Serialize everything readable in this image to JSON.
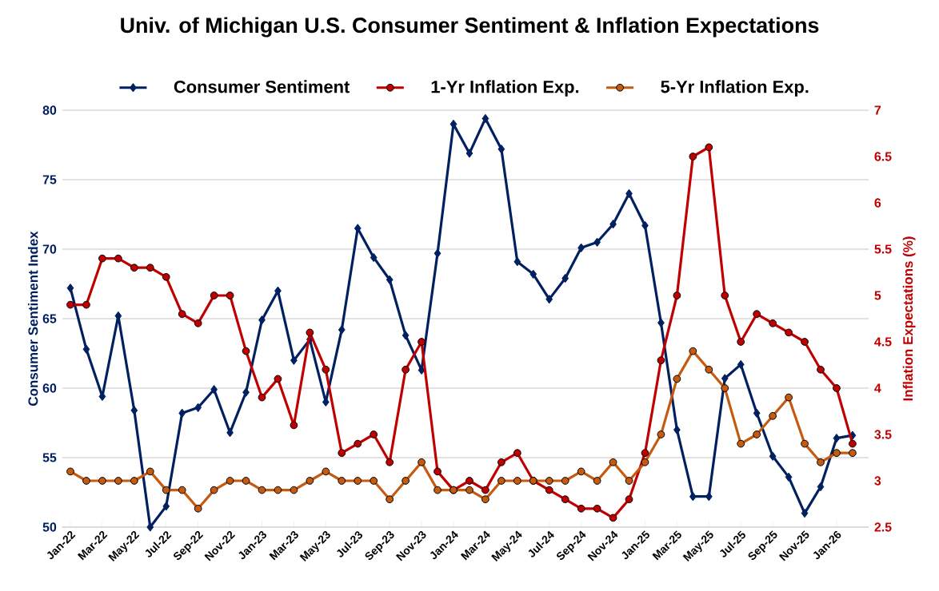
{
  "chart_data": {
    "type": "line",
    "title": "Univ. of Michigan U.S. Consumer Sentiment & Inflation Expectations",
    "ylabel": "Consumer Sentiment Index",
    "y2label": "Inflation Expectations (%)",
    "x": [
      "2022-01",
      "2022-02",
      "2022-03",
      "2022-04",
      "2022-05",
      "2022-06",
      "2022-07",
      "2022-08",
      "2022-09",
      "2022-10",
      "2022-11",
      "2022-12",
      "2023-01",
      "2023-02",
      "2023-03",
      "2023-04",
      "2023-05",
      "2023-06",
      "2023-07",
      "2023-08",
      "2023-09",
      "2023-10",
      "2023-11",
      "2023-12",
      "2024-01",
      "2024-02",
      "2024-03",
      "2024-04",
      "2024-05",
      "2024-06",
      "2024-07",
      "2024-08",
      "2024-09",
      "2024-10",
      "2024-11",
      "2024-12",
      "2025-01",
      "2025-02",
      "2025-03",
      "2025-04",
      "2025-05",
      "2025-06",
      "2025-07",
      "2025-08",
      "2025-09",
      "2025-10",
      "2025-11",
      "2025-12",
      "2026-01",
      "2026-02"
    ],
    "series": [
      {
        "name": "Consumer Sentiment",
        "color": "#002060",
        "marker": "diamond",
        "values": [
          67.2,
          62.8,
          59.4,
          65.2,
          58.4,
          50.0,
          51.5,
          58.2,
          58.6,
          59.9,
          56.8,
          59.7,
          64.9,
          67.0,
          62.0,
          63.5,
          59.0,
          64.2,
          71.5,
          69.4,
          67.8,
          63.8,
          61.3,
          69.7,
          79.0,
          76.9,
          79.4,
          77.2,
          69.1,
          68.2,
          66.4,
          67.9,
          70.1,
          70.5,
          71.8,
          74.0,
          71.7,
          64.7,
          57.0,
          52.2,
          52.2,
          60.7,
          61.7,
          58.2,
          55.1,
          53.6,
          51.0,
          52.9,
          56.4,
          56.6
        ]
      },
      {
        "name": "1-Yr Inflation Exp.",
        "color": "#c00000",
        "marker": "circle",
        "axis": "y2",
        "values": [
          4.9,
          4.9,
          5.4,
          5.4,
          5.3,
          5.3,
          5.2,
          4.8,
          4.7,
          5.0,
          5.0,
          4.4,
          3.9,
          4.1,
          3.6,
          4.6,
          4.2,
          3.3,
          3.4,
          3.5,
          3.2,
          4.2,
          4.5,
          3.1,
          2.9,
          3.0,
          2.9,
          3.2,
          3.3,
          3.0,
          2.9,
          2.8,
          2.7,
          2.7,
          2.6,
          2.8,
          3.3,
          4.3,
          5.0,
          6.5,
          6.6,
          5.0,
          4.5,
          4.8,
          4.7,
          4.6,
          4.5,
          4.2,
          4.0,
          3.4
        ]
      },
      {
        "name": "5-Yr Inflation Exp.",
        "color": "#c55a11",
        "marker": "circle",
        "axis": "y2",
        "values": [
          3.1,
          3.0,
          3.0,
          3.0,
          3.0,
          3.1,
          2.9,
          2.9,
          2.7,
          2.9,
          3.0,
          3.0,
          2.9,
          2.9,
          2.9,
          3.0,
          3.1,
          3.0,
          3.0,
          3.0,
          2.8,
          3.0,
          3.2,
          2.9,
          2.9,
          2.9,
          2.8,
          3.0,
          3.0,
          3.0,
          3.0,
          3.0,
          3.1,
          3.0,
          3.2,
          3.0,
          3.2,
          3.5,
          4.1,
          4.4,
          4.2,
          4.0,
          3.4,
          3.5,
          3.7,
          3.9,
          3.4,
          3.2,
          3.3,
          3.3
        ]
      }
    ],
    "xlim": [
      "2021-12-16",
      "2026-03-01"
    ],
    "xticks": [
      {
        "value": "2022-01",
        "label": "Jan-22"
      },
      {
        "value": "2022-03",
        "label": "Mar-22"
      },
      {
        "value": "2022-05",
        "label": "May-22"
      },
      {
        "value": "2022-07",
        "label": "Jul-22"
      },
      {
        "value": "2022-09",
        "label": "Sep-22"
      },
      {
        "value": "2022-11",
        "label": "Nov-22"
      },
      {
        "value": "2023-01",
        "label": "Jan-23"
      },
      {
        "value": "2023-03",
        "label": "Mar-23"
      },
      {
        "value": "2023-05",
        "label": "May-23"
      },
      {
        "value": "2023-07",
        "label": "Jul-23"
      },
      {
        "value": "2023-09",
        "label": "Sep-23"
      },
      {
        "value": "2023-11",
        "label": "Nov-23"
      },
      {
        "value": "2024-01",
        "label": "Jan-24"
      },
      {
        "value": "2024-03",
        "label": "Mar-24"
      },
      {
        "value": "2024-05",
        "label": "May-24"
      },
      {
        "value": "2024-07",
        "label": "Jul-24"
      },
      {
        "value": "2024-09",
        "label": "Sep-24"
      },
      {
        "value": "2024-11",
        "label": "Nov-24"
      },
      {
        "value": "2025-01",
        "label": "Jan-25"
      },
      {
        "value": "2025-03",
        "label": "Mar-25"
      },
      {
        "value": "2025-05",
        "label": "May-25"
      },
      {
        "value": "2025-07",
        "label": "Jul-25"
      },
      {
        "value": "2025-09",
        "label": "Sep-25"
      },
      {
        "value": "2025-11",
        "label": "Nov-25"
      },
      {
        "value": "2026-01",
        "label": "Jan-26"
      }
    ],
    "ylim": [
      50,
      80
    ],
    "yticks": [
      50,
      55,
      60,
      65,
      70,
      75,
      80
    ],
    "y2lim": [
      2.5,
      7
    ],
    "y2ticks": [
      2.5,
      3,
      3.5,
      4,
      4.5,
      5,
      5.5,
      6,
      6.5,
      7
    ],
    "grid": "y",
    "legend": "top",
    "line_style": "solid"
  }
}
